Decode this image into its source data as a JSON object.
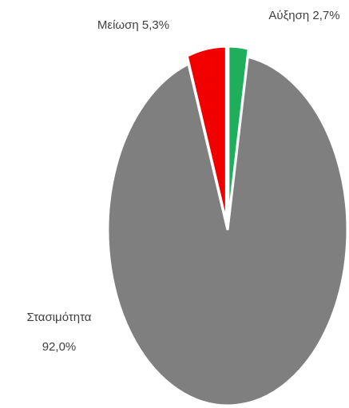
{
  "chart_data": {
    "type": "pie",
    "categories": [
      "Αύξηση",
      "Στασιμότητα",
      "Μείωση"
    ],
    "values": [
      2.7,
      92.0,
      5.3
    ],
    "value_labels": [
      "2,7%",
      "92,0%",
      "5,3%"
    ],
    "colors": [
      "#1fae5a",
      "#7f7f7f",
      "#f20000"
    ]
  }
}
